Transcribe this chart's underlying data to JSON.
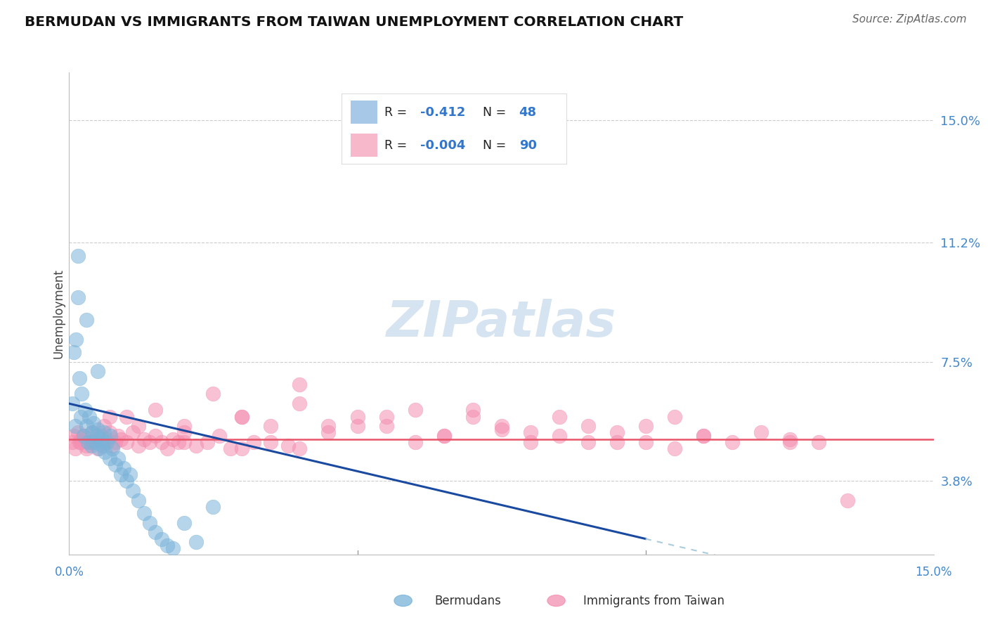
{
  "title": "BERMUDAN VS IMMIGRANTS FROM TAIWAN UNEMPLOYMENT CORRELATION CHART",
  "source": "Source: ZipAtlas.com",
  "ylabel": "Unemployment",
  "yticks": [
    3.8,
    7.5,
    11.2,
    15.0
  ],
  "ytick_labels": [
    "3.8%",
    "7.5%",
    "11.2%",
    "15.0%"
  ],
  "xlim": [
    0.0,
    15.0
  ],
  "ylim": [
    1.5,
    16.5
  ],
  "bermudans_R": -0.412,
  "bermudans_N": 48,
  "taiwan_R": -0.004,
  "taiwan_N": 90,
  "blue_color": "#7ab3d9",
  "pink_color": "#f48fb1",
  "trend_blue": "#1a4a9f",
  "trend_pink": "#e8546a",
  "watermark_color": "#c5d9ed",
  "scatter_blue_x": [
    0.05,
    0.08,
    0.1,
    0.12,
    0.15,
    0.18,
    0.2,
    0.22,
    0.25,
    0.28,
    0.3,
    0.32,
    0.35,
    0.38,
    0.4,
    0.42,
    0.45,
    0.48,
    0.5,
    0.52,
    0.55,
    0.58,
    0.6,
    0.62,
    0.65,
    0.7,
    0.72,
    0.75,
    0.8,
    0.85,
    0.9,
    0.95,
    1.0,
    1.05,
    1.1,
    1.2,
    1.3,
    1.4,
    1.5,
    1.6,
    1.7,
    1.8,
    2.0,
    2.2,
    2.5,
    0.15,
    0.3,
    0.5
  ],
  "scatter_blue_y": [
    6.2,
    7.8,
    5.5,
    8.2,
    9.5,
    7.0,
    5.8,
    6.5,
    5.2,
    6.0,
    5.5,
    5.0,
    5.8,
    4.9,
    5.3,
    5.6,
    5.0,
    5.2,
    5.4,
    4.8,
    5.1,
    4.9,
    5.3,
    4.7,
    5.0,
    4.5,
    5.2,
    4.8,
    4.3,
    4.5,
    4.0,
    4.2,
    3.8,
    4.0,
    3.5,
    3.2,
    2.8,
    2.5,
    2.2,
    2.0,
    1.8,
    1.7,
    2.5,
    1.9,
    3.0,
    10.8,
    8.8,
    7.2
  ],
  "scatter_pink_x": [
    0.05,
    0.08,
    0.1,
    0.15,
    0.18,
    0.2,
    0.25,
    0.3,
    0.35,
    0.4,
    0.45,
    0.5,
    0.55,
    0.6,
    0.65,
    0.7,
    0.75,
    0.8,
    0.85,
    0.9,
    1.0,
    1.1,
    1.2,
    1.3,
    1.4,
    1.5,
    1.6,
    1.7,
    1.8,
    1.9,
    2.0,
    2.2,
    2.4,
    2.6,
    2.8,
    3.0,
    3.2,
    3.5,
    3.8,
    4.0,
    4.5,
    5.0,
    5.5,
    6.0,
    6.5,
    7.0,
    7.5,
    8.0,
    8.5,
    9.0,
    9.5,
    10.0,
    10.5,
    11.0,
    11.5,
    12.0,
    12.5,
    13.0,
    0.3,
    0.6,
    1.0,
    1.5,
    2.0,
    2.5,
    3.0,
    3.5,
    4.0,
    5.0,
    6.0,
    7.0,
    8.0,
    9.0,
    10.0,
    11.0,
    0.2,
    0.7,
    1.2,
    2.0,
    3.0,
    4.5,
    5.5,
    6.5,
    7.5,
    8.5,
    9.5,
    10.5,
    12.5,
    13.5,
    4.0,
    0.4
  ],
  "scatter_pink_y": [
    5.0,
    5.2,
    4.8,
    5.3,
    5.0,
    5.1,
    5.2,
    4.9,
    5.0,
    5.3,
    5.1,
    4.8,
    5.2,
    5.0,
    5.1,
    5.3,
    4.9,
    5.0,
    5.2,
    5.1,
    5.0,
    5.3,
    4.9,
    5.1,
    5.0,
    5.2,
    5.0,
    4.8,
    5.1,
    5.0,
    5.3,
    4.9,
    5.0,
    5.2,
    4.8,
    5.8,
    5.0,
    5.5,
    4.9,
    6.2,
    5.3,
    5.8,
    5.5,
    6.0,
    5.2,
    5.8,
    5.4,
    5.0,
    5.2,
    5.5,
    5.3,
    5.0,
    5.8,
    5.2,
    5.0,
    5.3,
    5.1,
    5.0,
    4.8,
    5.5,
    5.8,
    6.0,
    5.5,
    6.5,
    5.8,
    5.0,
    6.8,
    5.5,
    5.0,
    6.0,
    5.3,
    5.0,
    5.5,
    5.2,
    5.0,
    5.8,
    5.5,
    5.0,
    4.8,
    5.5,
    5.8,
    5.2,
    5.5,
    5.8,
    5.0,
    4.8,
    5.0,
    3.2,
    4.8,
    5.0
  ],
  "blue_trend_x0": 0.0,
  "blue_trend_y0": 6.2,
  "blue_trend_slope": -0.42,
  "blue_trend_solid_end": 10.0,
  "blue_trend_dash_end": 15.0,
  "pink_trend_y": 5.1,
  "legend_R1": "R =  -0.412",
  "legend_N1": "N = 48",
  "legend_R2": "R = -0.004",
  "legend_N2": "N = 90"
}
